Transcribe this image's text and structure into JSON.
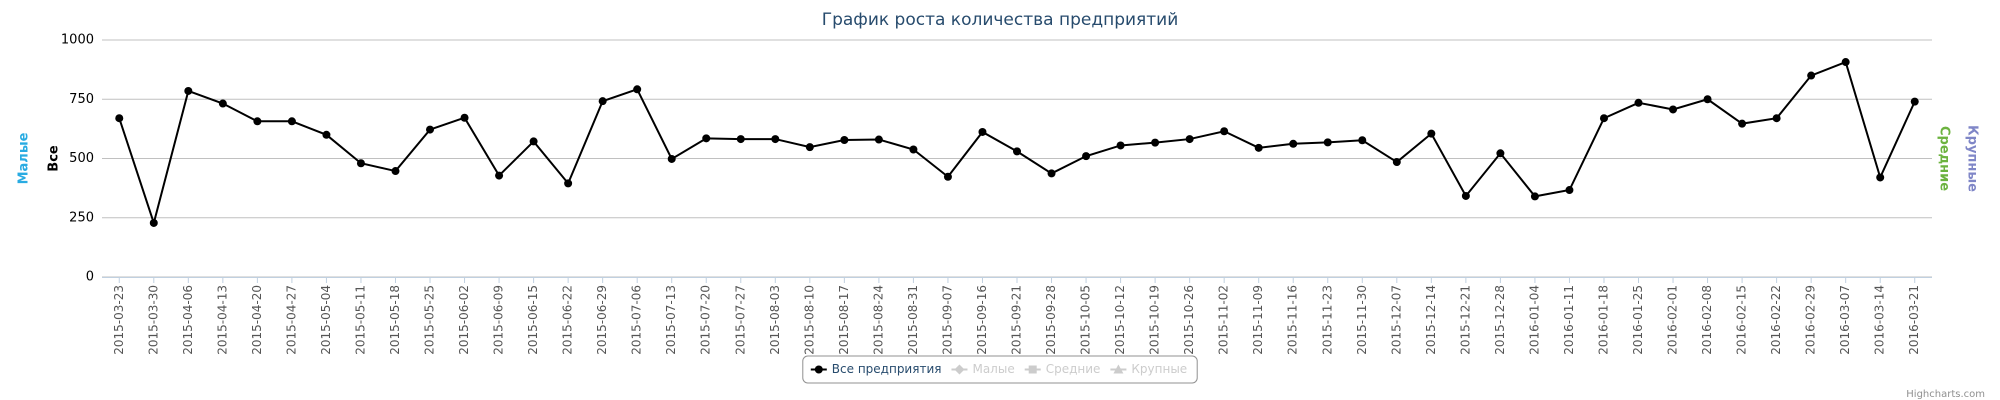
{
  "chart_data": {
    "type": "line",
    "title": "График роста количества предприятий",
    "left_axis_titles": [
      {
        "text": "Малые",
        "color": "#29abe2"
      },
      {
        "text": "Все",
        "color": "#000000"
      }
    ],
    "right_axis_titles": [
      {
        "text": "Средние",
        "color": "#6cb33f"
      },
      {
        "text": "Крупные",
        "color": "#7f86c7"
      }
    ],
    "categories": [
      "2015-03-23",
      "2015-03-30",
      "2015-04-06",
      "2015-04-13",
      "2015-04-20",
      "2015-04-27",
      "2015-05-04",
      "2015-05-11",
      "2015-05-18",
      "2015-05-25",
      "2015-06-02",
      "2015-06-09",
      "2015-06-15",
      "2015-06-22",
      "2015-06-29",
      "2015-07-06",
      "2015-07-13",
      "2015-07-20",
      "2015-07-27",
      "2015-08-03",
      "2015-08-10",
      "2015-08-17",
      "2015-08-24",
      "2015-08-31",
      "2015-09-07",
      "2015-09-16",
      "2015-09-21",
      "2015-09-28",
      "2015-10-05",
      "2015-10-12",
      "2015-10-19",
      "2015-10-26",
      "2015-11-02",
      "2015-11-09",
      "2015-11-16",
      "2015-11-23",
      "2015-11-30",
      "2015-12-07",
      "2015-12-14",
      "2015-12-21",
      "2015-12-28",
      "2016-01-04",
      "2016-01-11",
      "2016-01-18",
      "2016-01-25",
      "2016-02-01",
      "2016-02-08",
      "2016-02-15",
      "2016-02-22",
      "2016-02-29",
      "2016-03-07",
      "2016-03-14",
      "2016-03-21"
    ],
    "series": [
      {
        "name": "Все предприятия",
        "color": "#000000",
        "marker": "circle",
        "values": [
          670,
          228,
          785,
          732,
          657,
          657,
          600,
          480,
          447,
          622,
          672,
          428,
          572,
          395,
          742,
          792,
          498,
          585,
          582,
          582,
          548,
          578,
          580,
          538,
          423,
          612,
          530,
          437,
          510,
          555,
          567,
          582,
          615,
          545,
          562,
          568,
          577,
          485,
          605,
          342,
          522,
          340,
          367,
          670,
          735,
          707,
          750,
          647,
          670,
          850,
          907,
          420,
          740
        ]
      }
    ],
    "hidden_series": [
      {
        "name": "Малые",
        "marker": "diamond"
      },
      {
        "name": "Средние",
        "marker": "square"
      },
      {
        "name": "Крупные",
        "marker": "triangle"
      }
    ],
    "ylim": [
      0,
      1000
    ],
    "yticks": [
      0,
      250,
      500,
      750,
      1000
    ],
    "grid": true,
    "credits": "Highcharts.com"
  }
}
